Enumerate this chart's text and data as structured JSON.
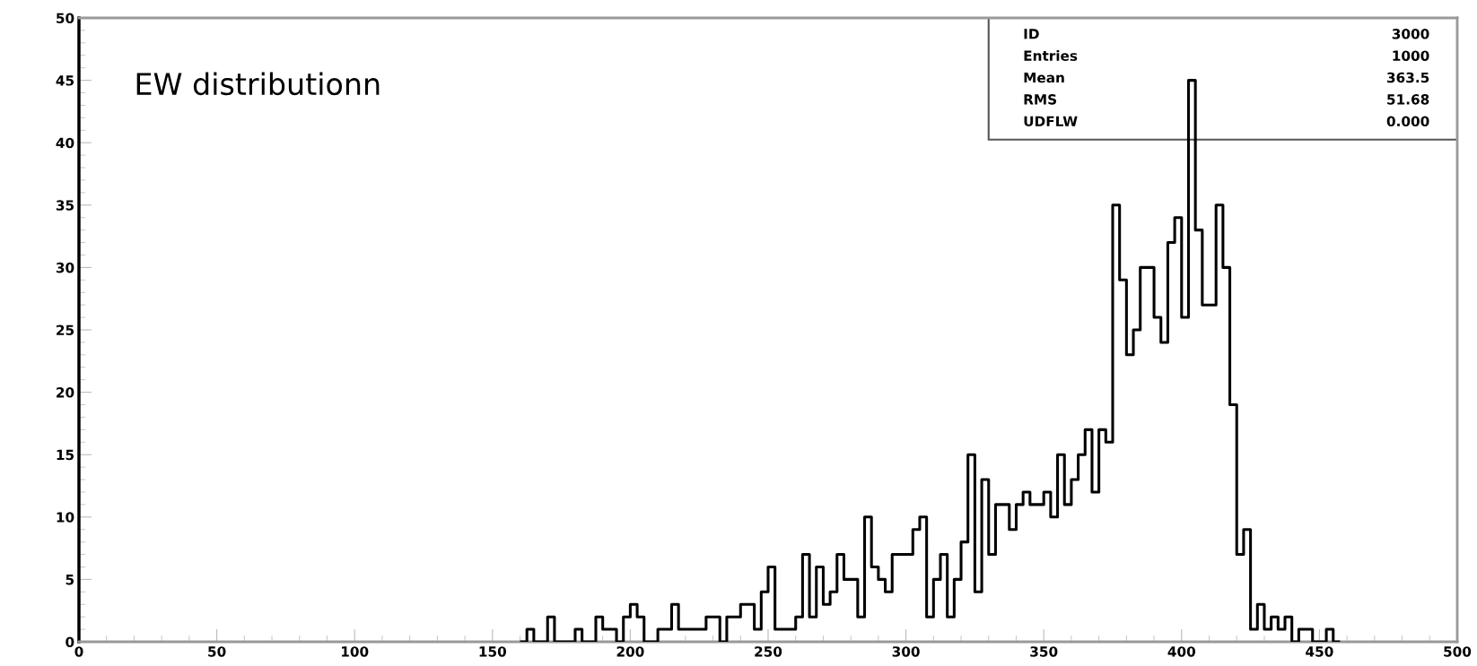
{
  "chart_data": {
    "type": "histogram",
    "title": "EW distributionn",
    "bins": [
      160,
      162.5,
      165,
      167.5,
      170,
      172.5,
      175,
      177.5,
      180,
      182.5,
      185,
      187.5,
      190,
      192.5,
      195,
      197.5,
      200,
      202.5,
      205,
      207.5,
      210,
      212.5,
      215,
      217.5,
      220,
      222.5,
      225,
      227.5,
      230,
      232.5,
      235,
      237.5,
      240,
      242.5,
      245,
      247.5,
      250,
      252.5,
      255,
      257.5,
      260,
      262.5,
      265,
      267.5,
      270,
      272.5,
      275,
      277.5,
      280,
      282.5,
      285,
      287.5,
      290,
      292.5,
      295,
      297.5,
      300,
      302.5,
      305,
      307.5,
      310,
      312.5,
      315,
      317.5,
      320,
      322.5,
      325,
      327.5,
      330,
      332.5,
      335,
      337.5,
      340,
      342.5,
      345,
      347.5,
      350,
      352.5,
      355,
      357.5,
      360,
      362.5,
      365,
      367.5,
      370,
      372.5,
      375,
      377.5,
      380,
      382.5,
      385,
      387.5,
      390,
      392.5,
      395,
      397.5,
      400,
      402.5,
      405,
      407.5,
      410,
      412.5,
      415,
      417.5,
      420,
      422.5,
      425,
      427.5,
      430,
      432.5,
      435,
      437.5,
      440,
      442.5,
      445,
      447.5,
      450,
      452.5,
      455,
      457.5
    ],
    "values": [
      0,
      1,
      0,
      0,
      2,
      0,
      0,
      0,
      1,
      0,
      0,
      2,
      1,
      1,
      0,
      2,
      3,
      2,
      0,
      0,
      1,
      1,
      3,
      1,
      1,
      1,
      1,
      2,
      2,
      0,
      2,
      2,
      3,
      3,
      1,
      4,
      6,
      1,
      1,
      1,
      2,
      7,
      2,
      6,
      3,
      4,
      7,
      5,
      5,
      2,
      10,
      6,
      5,
      4,
      7,
      7,
      7,
      9,
      10,
      2,
      5,
      7,
      2,
      5,
      8,
      15,
      4,
      13,
      7,
      11,
      11,
      9,
      11,
      12,
      11,
      11,
      12,
      10,
      15,
      11,
      13,
      15,
      17,
      12,
      17,
      16,
      35,
      29,
      23,
      25,
      30,
      30,
      26,
      24,
      32,
      34,
      26,
      45,
      33,
      27,
      27,
      35,
      30,
      19,
      7,
      9,
      1,
      3,
      1,
      2,
      1,
      2,
      0,
      1,
      1,
      0,
      0,
      1,
      0
    ],
    "color": "#000000",
    "xlim": [
      0,
      500
    ],
    "xticks": [
      0,
      50,
      100,
      150,
      200,
      250,
      300,
      350,
      400,
      450,
      500
    ],
    "ylim": [
      0,
      50
    ],
    "yticks": [
      0,
      5,
      10,
      15,
      20,
      25,
      30,
      35,
      40,
      45,
      50
    ],
    "annotations": [
      "ID",
      "3000",
      "Entries",
      "1000",
      "Mean",
      "363.5",
      "RMS",
      "51.68",
      "UDFLW",
      "0.000"
    ],
    "grid": false,
    "legend": false
  }
}
